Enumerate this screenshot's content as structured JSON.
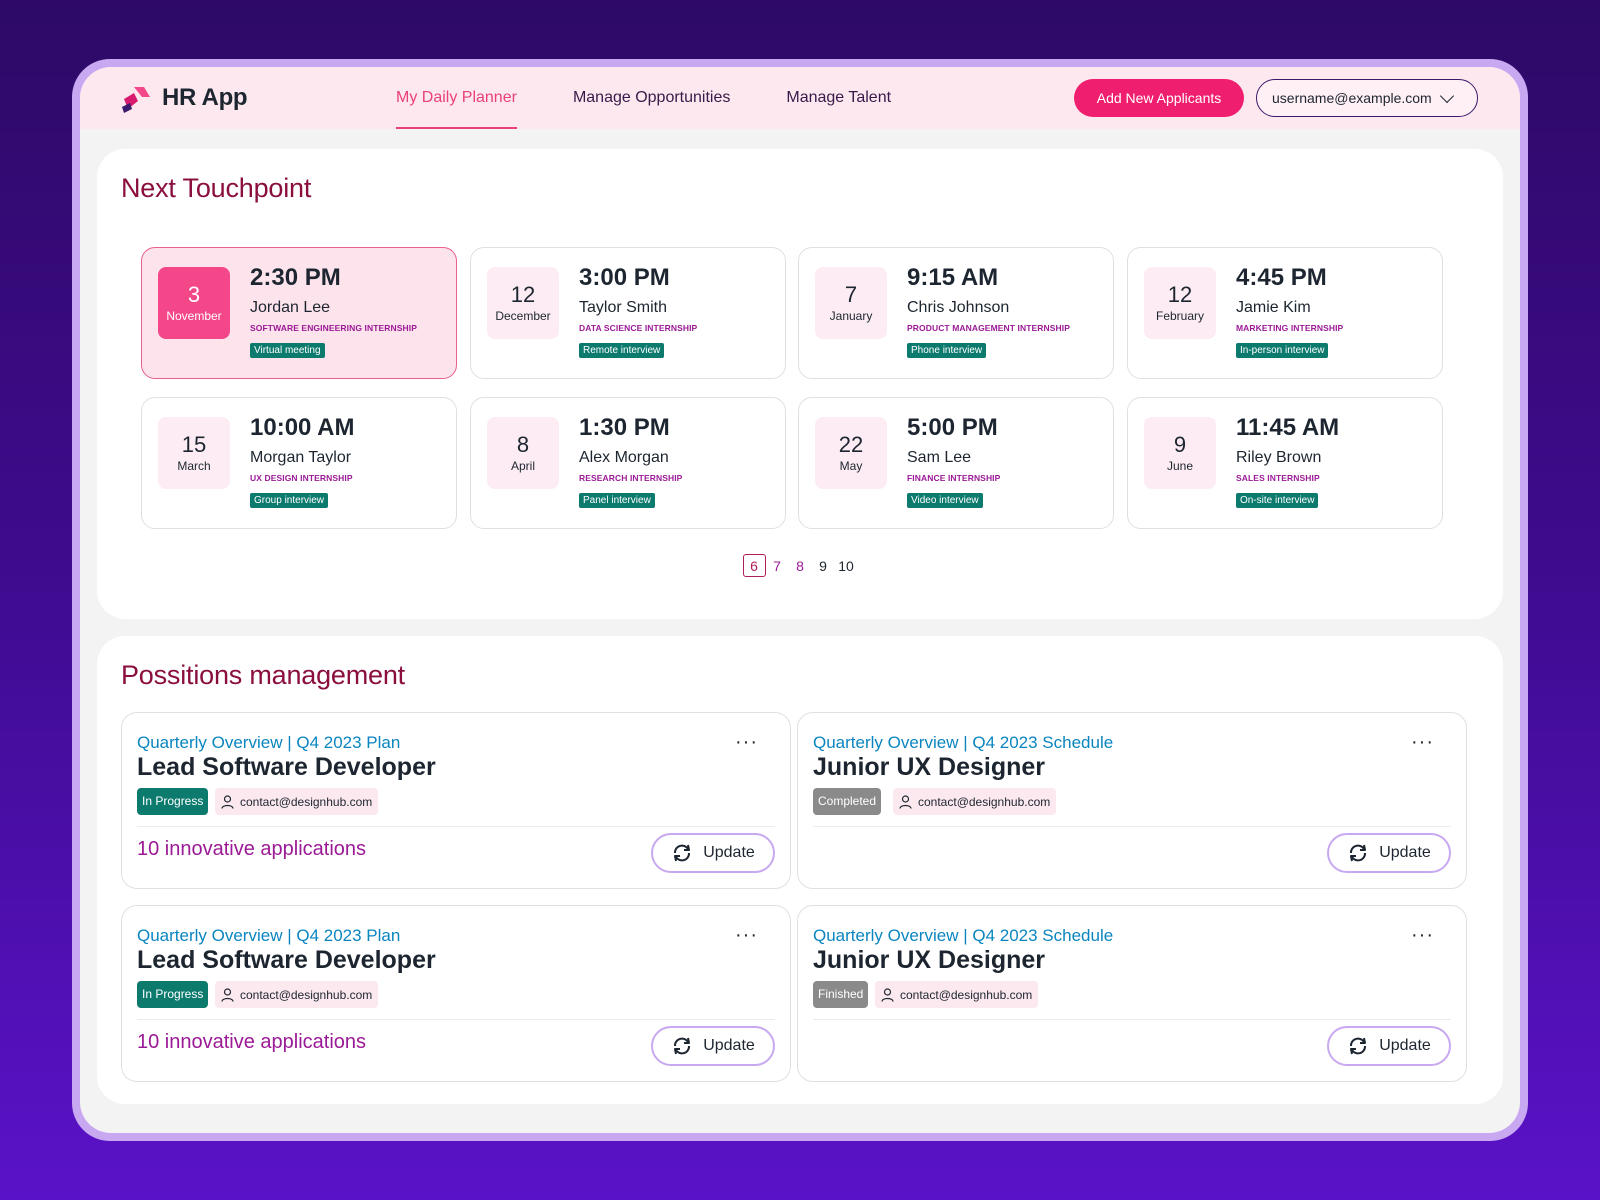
{
  "app": {
    "name": "HR App"
  },
  "nav": [
    {
      "label": "My Daily Planner",
      "active": true
    },
    {
      "label": "Manage Opportunities",
      "active": false
    },
    {
      "label": "Manage Talent",
      "active": false
    }
  ],
  "header": {
    "add_button": "Add New Applicants",
    "user_email": "username@example.com"
  },
  "touchpoint": {
    "title": "Next Touchpoint",
    "cards": [
      {
        "day": "3",
        "month": "November",
        "time": "2:30 PM",
        "name": "Jordan Lee",
        "role": "SOFTWARE ENGINEERING INTERNSHIP",
        "tag": "Virtual meeting",
        "active": true
      },
      {
        "day": "12",
        "month": "December",
        "time": "3:00 PM",
        "name": "Taylor Smith",
        "role": "DATA SCIENCE INTERNSHIP",
        "tag": "Remote interview"
      },
      {
        "day": "7",
        "month": "January",
        "time": "9:15 AM",
        "name": "Chris Johnson",
        "role": "PRODUCT MANAGEMENT INTERNSHIP",
        "tag": "Phone interview"
      },
      {
        "day": "12",
        "month": "February",
        "time": "4:45 PM",
        "name": "Jamie Kim",
        "role": "MARKETING INTERNSHIP",
        "tag": "In-person interview"
      },
      {
        "day": "15",
        "month": "March",
        "time": "10:00 AM",
        "name": "Morgan Taylor",
        "role": "UX DESIGN INTERNSHIP",
        "tag": "Group interview"
      },
      {
        "day": "8",
        "month": "April",
        "time": "1:30 PM",
        "name": "Alex Morgan",
        "role": "RESEARCH INTERNSHIP",
        "tag": "Panel interview"
      },
      {
        "day": "22",
        "month": "May",
        "time": "5:00 PM",
        "name": "Sam Lee",
        "role": "FINANCE INTERNSHIP",
        "tag": "Video interview"
      },
      {
        "day": "9",
        "month": "June",
        "time": "11:45 AM",
        "name": "Riley Brown",
        "role": "SALES INTERNSHIP",
        "tag": "On-site interview"
      }
    ],
    "pages": [
      "6",
      "7",
      "8",
      "9",
      "10"
    ],
    "current_page": "6"
  },
  "positions": {
    "title": "Possitions management",
    "cards": [
      {
        "subtitle": "Quarterly Overview | Q4 2023 Plan",
        "title": "Lead Software Developer",
        "status": "In Progress",
        "status_color": "#0d7a6e",
        "contact": "contact@designhub.com",
        "applications": "10 innovative applications",
        "update_label": "Update",
        "more": "···"
      },
      {
        "subtitle": "Quarterly Overview | Q4 2023 Schedule",
        "title": "Junior UX Designer",
        "status": "Completed",
        "status_color": "#8a8a8a",
        "contact": "contact@designhub.com",
        "applications": "",
        "update_label": "Update",
        "more": "···"
      },
      {
        "subtitle": "Quarterly Overview | Q4 2023 Plan",
        "title": "Lead Software Developer",
        "status": "In Progress",
        "status_color": "#0d7a6e",
        "contact": "contact@designhub.com",
        "applications": "10 innovative applications",
        "update_label": "Update",
        "more": "···"
      },
      {
        "subtitle": "Quarterly Overview | Q4 2023 Schedule",
        "title": "Junior UX Designer",
        "status": "Finished",
        "status_color": "#8a8a8a",
        "contact": "contact@designhub.com",
        "applications": "",
        "update_label": "Update",
        "more": "···"
      }
    ]
  },
  "colors": {
    "accent_pink": "#f01e6e",
    "title_maroon": "#8a0f3e",
    "teal_tag": "#0d7a6e",
    "link_blue": "#0a85c0",
    "purple_text": "#9b1a96"
  },
  "icons": [
    "logo-icon",
    "chevron-down-icon",
    "refresh-icon",
    "user-icon",
    "more-icon"
  ]
}
